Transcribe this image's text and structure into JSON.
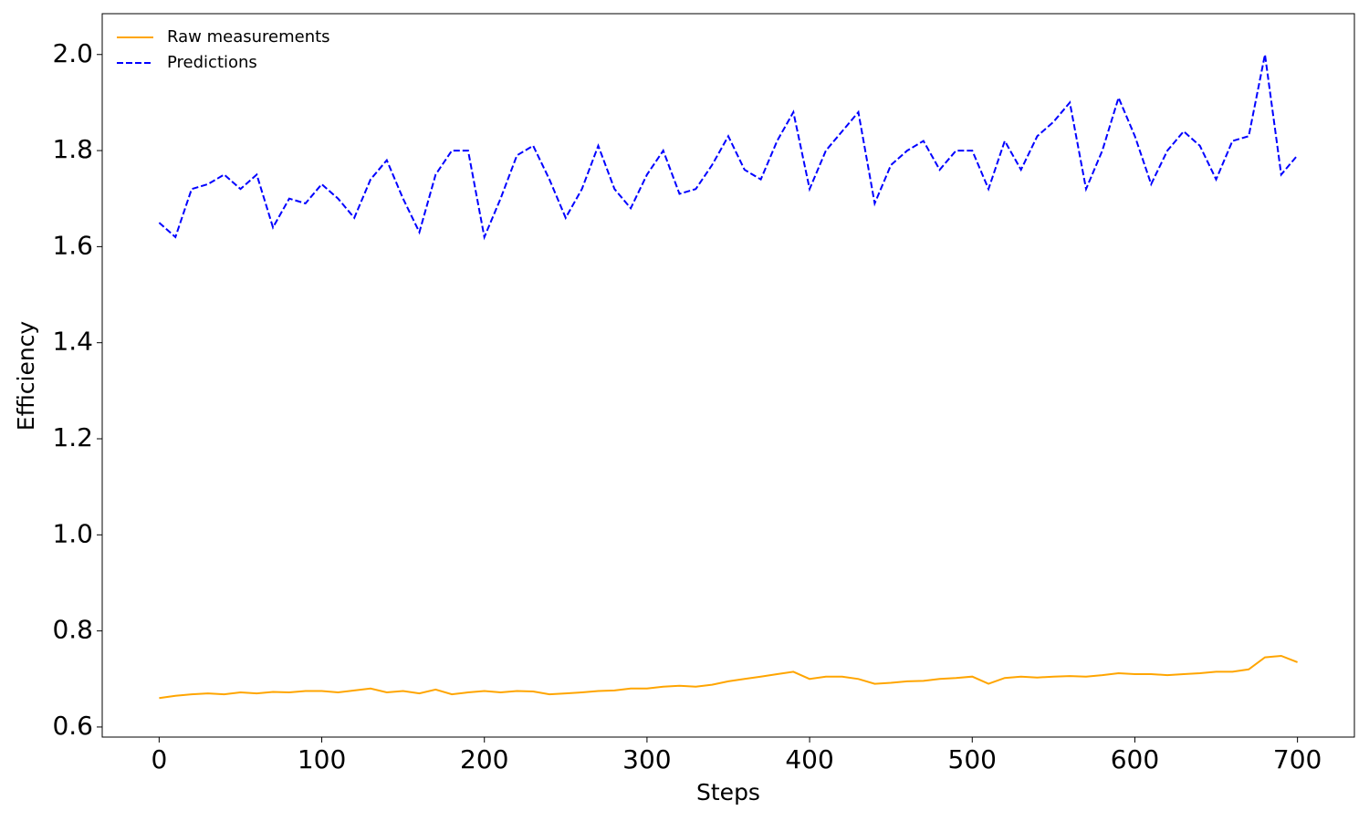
{
  "chart_data": {
    "type": "line",
    "xlabel": "Steps",
    "ylabel": "Efficiency",
    "x": [
      0,
      10,
      20,
      30,
      40,
      50,
      60,
      70,
      80,
      90,
      100,
      110,
      120,
      130,
      140,
      150,
      160,
      170,
      180,
      190,
      200,
      210,
      220,
      230,
      240,
      250,
      260,
      270,
      280,
      290,
      300,
      310,
      320,
      330,
      340,
      350,
      360,
      370,
      380,
      390,
      400,
      410,
      420,
      430,
      440,
      450,
      460,
      470,
      480,
      490,
      500,
      510,
      520,
      530,
      540,
      550,
      560,
      570,
      580,
      590,
      600,
      610,
      620,
      630,
      640,
      650,
      660,
      670,
      680,
      690,
      700
    ],
    "series": [
      {
        "name": "Raw measurements",
        "color": "#ffa500",
        "linestyle": "solid",
        "values": [
          0.66,
          0.665,
          0.668,
          0.67,
          0.668,
          0.672,
          0.67,
          0.673,
          0.672,
          0.675,
          0.675,
          0.672,
          0.676,
          0.68,
          0.672,
          0.675,
          0.67,
          0.678,
          0.668,
          0.672,
          0.675,
          0.672,
          0.675,
          0.674,
          0.668,
          0.67,
          0.672,
          0.675,
          0.676,
          0.68,
          0.68,
          0.684,
          0.686,
          0.684,
          0.688,
          0.695,
          0.7,
          0.705,
          0.71,
          0.715,
          0.7,
          0.705,
          0.705,
          0.7,
          0.69,
          0.692,
          0.695,
          0.696,
          0.7,
          0.702,
          0.705,
          0.69,
          0.702,
          0.705,
          0.703,
          0.705,
          0.706,
          0.705,
          0.708,
          0.712,
          0.71,
          0.71,
          0.708,
          0.71,
          0.712,
          0.715,
          0.715,
          0.72,
          0.745,
          0.748,
          0.735
        ]
      },
      {
        "name": "Predictions",
        "color": "#0000ff",
        "linestyle": "dashed",
        "values": [
          1.65,
          1.62,
          1.72,
          1.73,
          1.75,
          1.72,
          1.75,
          1.64,
          1.7,
          1.69,
          1.73,
          1.7,
          1.66,
          1.74,
          1.78,
          1.7,
          1.63,
          1.75,
          1.8,
          1.8,
          1.62,
          1.7,
          1.79,
          1.81,
          1.74,
          1.66,
          1.72,
          1.81,
          1.72,
          1.68,
          1.75,
          1.8,
          1.71,
          1.72,
          1.77,
          1.83,
          1.76,
          1.74,
          1.82,
          1.88,
          1.72,
          1.8,
          1.84,
          1.88,
          1.69,
          1.77,
          1.8,
          1.82,
          1.76,
          1.8,
          1.8,
          1.72,
          1.82,
          1.76,
          1.83,
          1.86,
          1.9,
          1.72,
          1.8,
          1.91,
          1.83,
          1.73,
          1.8,
          1.84,
          1.81,
          1.74,
          1.82,
          1.83,
          2.0,
          1.75,
          1.79
        ]
      }
    ],
    "xlim": [
      -35,
      735
    ],
    "ylim": [
      0.579,
      2.085
    ],
    "xticks": [
      0,
      100,
      200,
      300,
      400,
      500,
      600,
      700
    ],
    "yticks": [
      0.6,
      0.8,
      {
        "value": 1,
        "label": "1.0"
      },
      1.2,
      1.4,
      1.6,
      1.8,
      {
        "value": 2,
        "label": "2.0"
      }
    ],
    "legend": "upper left"
  }
}
